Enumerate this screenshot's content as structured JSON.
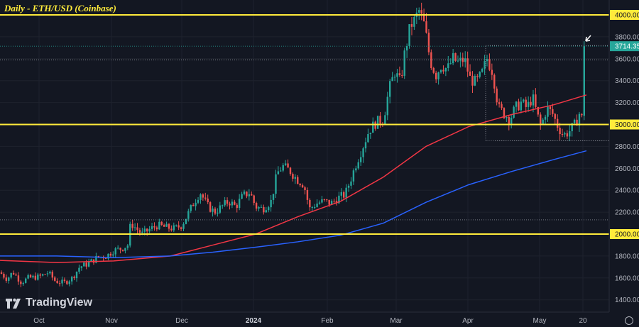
{
  "header": {
    "title": "Daily - ETH/USD (Coinbase)"
  },
  "brand": {
    "name": "TradingView"
  },
  "colors": {
    "background": "#131722",
    "up": "#26a69a",
    "down": "#ef5350",
    "ma_red": "#f23645",
    "ma_blue": "#2962ff",
    "level": "#ffeb3b",
    "grid": "#1e222d"
  },
  "chart_data": {
    "type": "candlestick",
    "title": "Daily - ETH/USD (Coinbase)",
    "ylim": [
      1300,
      4120
    ],
    "y_ticks": [
      4000,
      3800,
      3600,
      3400,
      3200,
      3000,
      2800,
      2600,
      2400,
      2200,
      2000,
      1800,
      1600,
      1400
    ],
    "y_tick_labels": [
      "4000.00",
      "3800.00",
      "3600.00",
      "3400.00",
      "3200.00",
      "3000.00",
      "2800.00",
      "2600.00",
      "2400.00",
      "2200.00",
      "2000.00",
      "1800.00",
      "1600.00",
      "1400.00"
    ],
    "x_tick_labels": [
      "Oct",
      "Nov",
      "Dec",
      "2024",
      "Feb",
      "Mar",
      "Apr",
      "May",
      "20"
    ],
    "horizontal_levels": [
      {
        "value": 4000,
        "label": "4000.00"
      },
      {
        "value": 3000,
        "label": "3000.00"
      },
      {
        "value": 2000,
        "label": "2000.00"
      }
    ],
    "last_price": {
      "value": 3714.35,
      "label": "3714.35"
    },
    "price_path": [
      [
        0,
        1650
      ],
      [
        10,
        1590
      ],
      [
        18,
        1655
      ],
      [
        30,
        1560
      ],
      [
        40,
        1600
      ],
      [
        55,
        1610
      ],
      [
        68,
        1650
      ],
      [
        78,
        1570
      ],
      [
        90,
        1555
      ],
      [
        102,
        1600
      ],
      [
        112,
        1700
      ],
      [
        124,
        1730
      ],
      [
        138,
        1790
      ],
      [
        150,
        1800
      ],
      [
        160,
        1850
      ],
      [
        172,
        1870
      ],
      [
        180,
        1900
      ],
      [
        184,
        2100
      ],
      [
        192,
        2050
      ],
      [
        200,
        2000
      ],
      [
        210,
        2040
      ],
      [
        222,
        2080
      ],
      [
        234,
        2060
      ],
      [
        246,
        2050
      ],
      [
        256,
        2080
      ],
      [
        266,
        2200
      ],
      [
        274,
        2300
      ],
      [
        282,
        2380
      ],
      [
        292,
        2260
      ],
      [
        302,
        2200
      ],
      [
        312,
        2250
      ],
      [
        322,
        2300
      ],
      [
        332,
        2250
      ],
      [
        342,
        2350
      ],
      [
        352,
        2380
      ],
      [
        360,
        2250
      ],
      [
        370,
        2230
      ],
      [
        382,
        2300
      ],
      [
        390,
        2550
      ],
      [
        398,
        2620
      ],
      [
        408,
        2580
      ],
      [
        418,
        2500
      ],
      [
        428,
        2450
      ],
      [
        436,
        2230
      ],
      [
        446,
        2280
      ],
      [
        456,
        2300
      ],
      [
        466,
        2280
      ],
      [
        476,
        2330
      ],
      [
        486,
        2360
      ],
      [
        494,
        2500
      ],
      [
        502,
        2650
      ],
      [
        510,
        2780
      ],
      [
        520,
        2950
      ],
      [
        530,
        3020
      ],
      [
        540,
        3050
      ],
      [
        548,
        3320
      ],
      [
        556,
        3480
      ],
      [
        564,
        3380
      ],
      [
        570,
        3650
      ],
      [
        578,
        3900
      ],
      [
        584,
        3950
      ],
      [
        590,
        4040
      ],
      [
        598,
        3900
      ],
      [
        606,
        3580
      ],
      [
        614,
        3450
      ],
      [
        622,
        3550
      ],
      [
        630,
        3500
      ],
      [
        638,
        3600
      ],
      [
        646,
        3560
      ],
      [
        654,
        3600
      ],
      [
        662,
        3420
      ],
      [
        670,
        3380
      ],
      [
        678,
        3450
      ],
      [
        686,
        3600
      ],
      [
        694,
        3480
      ],
      [
        702,
        3150
      ],
      [
        710,
        3100
      ],
      [
        718,
        3050
      ],
      [
        726,
        3150
      ],
      [
        734,
        3200
      ],
      [
        742,
        3150
      ],
      [
        750,
        3250
      ],
      [
        756,
        3100
      ],
      [
        762,
        2980
      ],
      [
        770,
        3150
      ],
      [
        778,
        3100
      ],
      [
        786,
        2980
      ],
      [
        794,
        2900
      ],
      [
        802,
        2940
      ],
      [
        810,
        3000
      ],
      [
        816,
        3100
      ],
      [
        820,
        3050
      ],
      [
        822,
        3670
      ],
      [
        826,
        3714
      ]
    ],
    "series": [
      {
        "name": "",
        "color": "#f23645",
        "values": [
          [
            0,
            1760
          ],
          [
            80,
            1740
          ],
          [
            160,
            1755
          ],
          [
            240,
            1800
          ],
          [
            300,
            1900
          ],
          [
            360,
            2000
          ],
          [
            420,
            2160
          ],
          [
            480,
            2300
          ],
          [
            540,
            2520
          ],
          [
            600,
            2800
          ],
          [
            660,
            2980
          ],
          [
            720,
            3090
          ],
          [
            780,
            3180
          ],
          [
            826,
            3270
          ]
        ]
      },
      {
        "name": "",
        "color": "#2962ff",
        "values": [
          [
            0,
            1800
          ],
          [
            80,
            1800
          ],
          [
            160,
            1785
          ],
          [
            240,
            1800
          ],
          [
            300,
            1835
          ],
          [
            360,
            1880
          ],
          [
            420,
            1930
          ],
          [
            480,
            1990
          ],
          [
            540,
            2100
          ],
          [
            600,
            2290
          ],
          [
            660,
            2450
          ],
          [
            720,
            2570
          ],
          [
            780,
            2680
          ],
          [
            826,
            2760
          ]
        ]
      }
    ]
  }
}
